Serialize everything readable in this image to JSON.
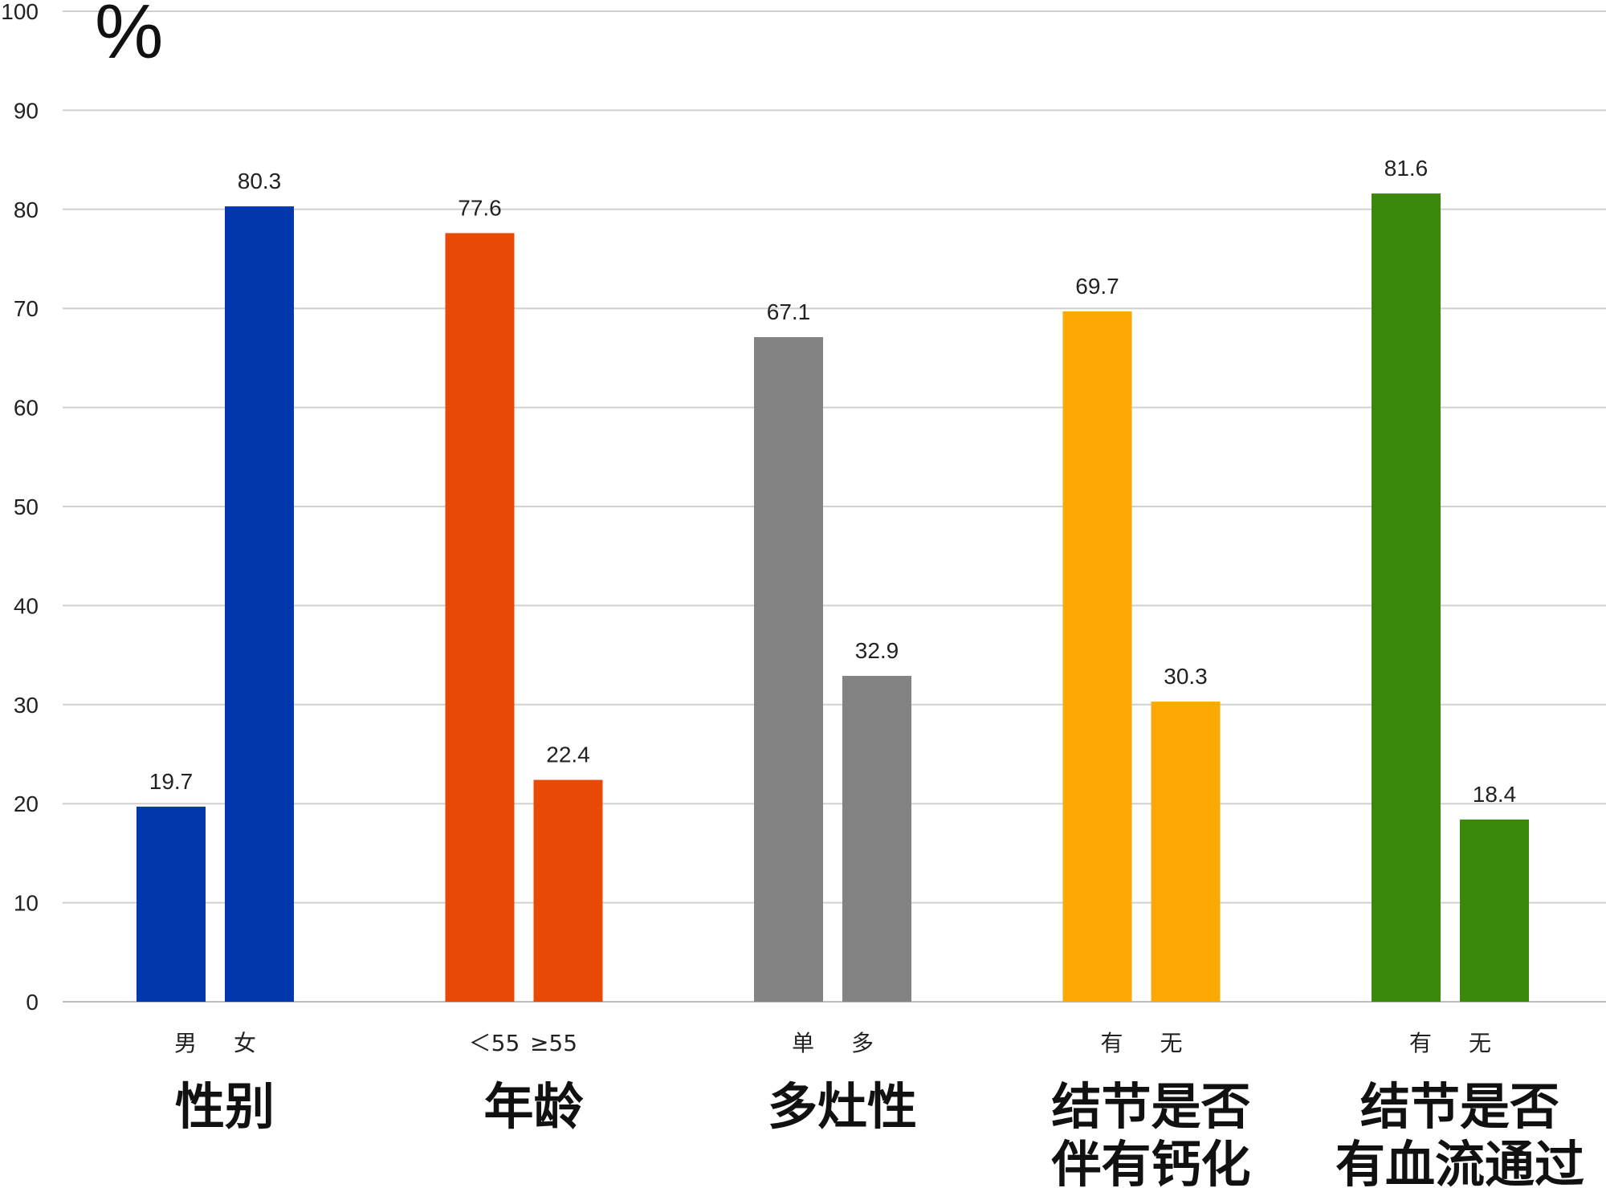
{
  "chart_data": {
    "type": "bar",
    "unit_label": "%",
    "ylim": [
      0,
      100
    ],
    "yticks": [
      "0",
      "10",
      "20",
      "30",
      "40",
      "50",
      "60",
      "70",
      "80",
      "90",
      "100"
    ],
    "grid": true,
    "groups": [
      {
        "name": [
          "性别"
        ],
        "color": "#0337ad",
        "bars": [
          {
            "category": "男",
            "value": 19.7,
            "label": "19.7"
          },
          {
            "category": "女",
            "value": 80.3,
            "label": "80.3"
          }
        ]
      },
      {
        "name": [
          "年龄"
        ],
        "color": "#e84a06",
        "bars": [
          {
            "category": "＜55",
            "value": 77.6,
            "label": "77.6"
          },
          {
            "category": "≥55",
            "value": 22.4,
            "label": "22.4"
          }
        ]
      },
      {
        "name": [
          "多灶性"
        ],
        "color": "#838383",
        "bars": [
          {
            "category": "单",
            "value": 67.1,
            "label": "67.1"
          },
          {
            "category": "多",
            "value": 32.9,
            "label": "32.9"
          }
        ]
      },
      {
        "name": [
          "结节是否",
          "伴有钙化"
        ],
        "color": "#fda804",
        "bars": [
          {
            "category": "有",
            "value": 69.7,
            "label": "69.7"
          },
          {
            "category": "无",
            "value": 30.3,
            "label": "30.3"
          }
        ]
      },
      {
        "name": [
          "结节是否",
          "有血流通过"
        ],
        "color": "#3a880c",
        "bars": [
          {
            "category": "有",
            "value": 81.6,
            "label": "81.6"
          },
          {
            "category": "无",
            "value": 18.4,
            "label": "18.4"
          }
        ]
      }
    ]
  }
}
